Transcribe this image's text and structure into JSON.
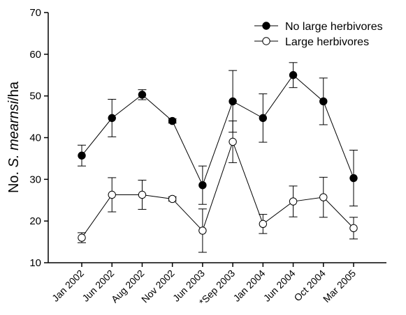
{
  "chart_data": {
    "type": "line",
    "categories": [
      "Jan 2002",
      "Jun 2002",
      "Aug 2002",
      "Nov 2002",
      "Jun 2003",
      "*Sep 2003",
      "Jan 2004",
      "Jun 2004",
      "Oct 2004",
      "Mar 2005"
    ],
    "series": [
      {
        "name": "No large herbivores",
        "marker": "filled-circle",
        "color": "#000000",
        "values": [
          35.7,
          44.7,
          50.3,
          44.0,
          28.6,
          48.7,
          44.7,
          55.0,
          48.7,
          30.3
        ],
        "error": [
          2.5,
          4.5,
          1.2,
          0.5,
          4.6,
          7.4,
          5.8,
          3.0,
          5.6,
          6.7
        ]
      },
      {
        "name": "Large herbivores",
        "marker": "open-circle",
        "color": "#000000",
        "values": [
          16.0,
          26.3,
          26.3,
          25.3,
          17.7,
          39.0,
          19.3,
          24.7,
          25.7,
          18.3
        ],
        "error": [
          1.2,
          4.1,
          3.5,
          0.5,
          5.2,
          5.0,
          2.3,
          3.7,
          4.8,
          2.6
        ]
      }
    ],
    "ylabel_prefix": "No. ",
    "ylabel_species": "S. mearnsi",
    "ylabel_suffix": "/ha",
    "ylim": [
      10,
      70
    ],
    "yticks": [
      10,
      20,
      30,
      40,
      50,
      60,
      70
    ],
    "grid": false,
    "legend_position": "top-right"
  }
}
